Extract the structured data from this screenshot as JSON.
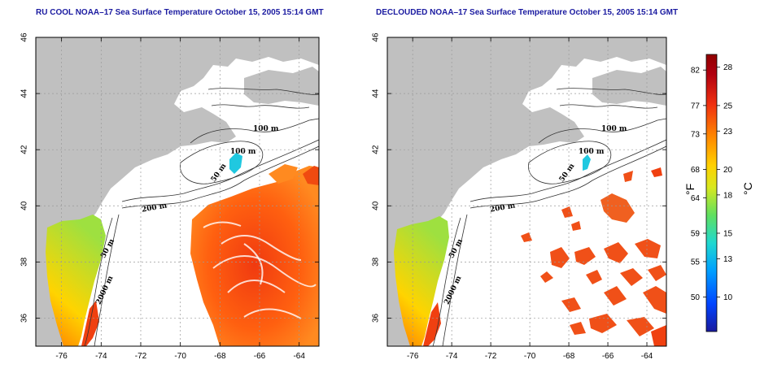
{
  "panels": [
    {
      "title": "RU COOL NOAA–17 Sea Surface Temperature October 15, 2005 15:14 GMT"
    },
    {
      "title": "DECLOUDED NOAA–17 Sea Surface Temperature October 15, 2005 15:14 GMT"
    }
  ],
  "map": {
    "lon_ticks": [
      "-76",
      "-74",
      "-72",
      "-70",
      "-68",
      "-66",
      "-64"
    ],
    "lat_ticks": [
      "36",
      "38",
      "40",
      "42",
      "44",
      "46"
    ],
    "lon_range": [
      -77.3,
      -63.0
    ],
    "lat_range": [
      35.0,
      46.0
    ],
    "contour_labels": [
      "100 m",
      "100 m",
      "50 m",
      "200 m",
      "50 m",
      "2000 m"
    ],
    "colors": {
      "land": "#c0c0c0",
      "ocean_missing": "#ffffff",
      "grid": "#9a9a9a"
    }
  },
  "colorbar": {
    "fahrenheit_ticks": [
      "82",
      "77",
      "73",
      "68",
      "64",
      "59",
      "55",
      "50"
    ],
    "celsius_ticks": [
      "28",
      "25",
      "23",
      "20",
      "18",
      "15",
      "13",
      "10"
    ],
    "fahrenheit_unit": "°F",
    "celsius_unit": "°C",
    "stops": [
      "#1a1a9e",
      "#0044ff",
      "#00a0ff",
      "#20d8d0",
      "#60e060",
      "#d8e820",
      "#ffd000",
      "#ff8a00",
      "#f03010",
      "#b00010",
      "#900000"
    ]
  }
}
